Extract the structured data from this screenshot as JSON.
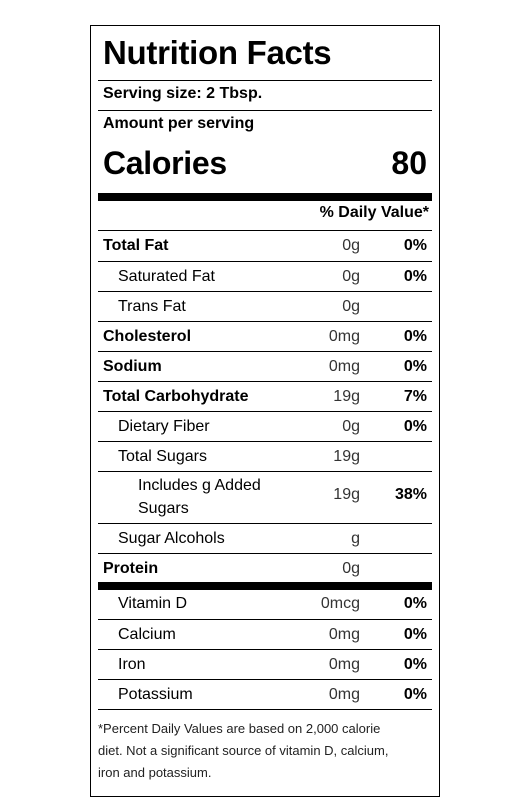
{
  "title": "Nutrition Facts",
  "serving_size": "Serving size: 2 Tbsp.",
  "amount_per_serving": "Amount per serving",
  "calories": {
    "label": "Calories",
    "value": "80"
  },
  "daily_value_header": "% Daily Value*",
  "nutrients": [
    {
      "name": "Total Fat",
      "amount": "0g",
      "dv": "0%"
    },
    {
      "name": "Saturated Fat",
      "amount": "0g",
      "dv": "0%"
    },
    {
      "name": "Trans Fat",
      "amount": "0g",
      "dv": ""
    },
    {
      "name": "Cholesterol",
      "amount": "0mg",
      "dv": "0%"
    },
    {
      "name": "Sodium",
      "amount": "0mg",
      "dv": "0%"
    },
    {
      "name": "Total Carbohydrate",
      "amount": "19g",
      "dv": "7%"
    },
    {
      "name": "Dietary Fiber",
      "amount": "0g",
      "dv": "0%"
    },
    {
      "name": "Total Sugars",
      "amount": "19g",
      "dv": ""
    },
    {
      "name": "Includes g Added Sugars",
      "amount": "19g",
      "dv": "38%"
    },
    {
      "name": "Sugar Alcohols",
      "amount": "g",
      "dv": ""
    },
    {
      "name": "Protein",
      "amount": "0g",
      "dv": ""
    }
  ],
  "vitamins": [
    {
      "name": "Vitamin D",
      "amount": "0mcg",
      "dv": "0%"
    },
    {
      "name": "Calcium",
      "amount": "0mg",
      "dv": "0%"
    },
    {
      "name": "Iron",
      "amount": "0mg",
      "dv": "0%"
    },
    {
      "name": "Potassium",
      "amount": "0mg",
      "dv": "0%"
    }
  ],
  "footnote": "*Percent Daily Values are based on 2,000 calorie diet. Not a significant source of vitamin D, calcium, iron and potassium."
}
